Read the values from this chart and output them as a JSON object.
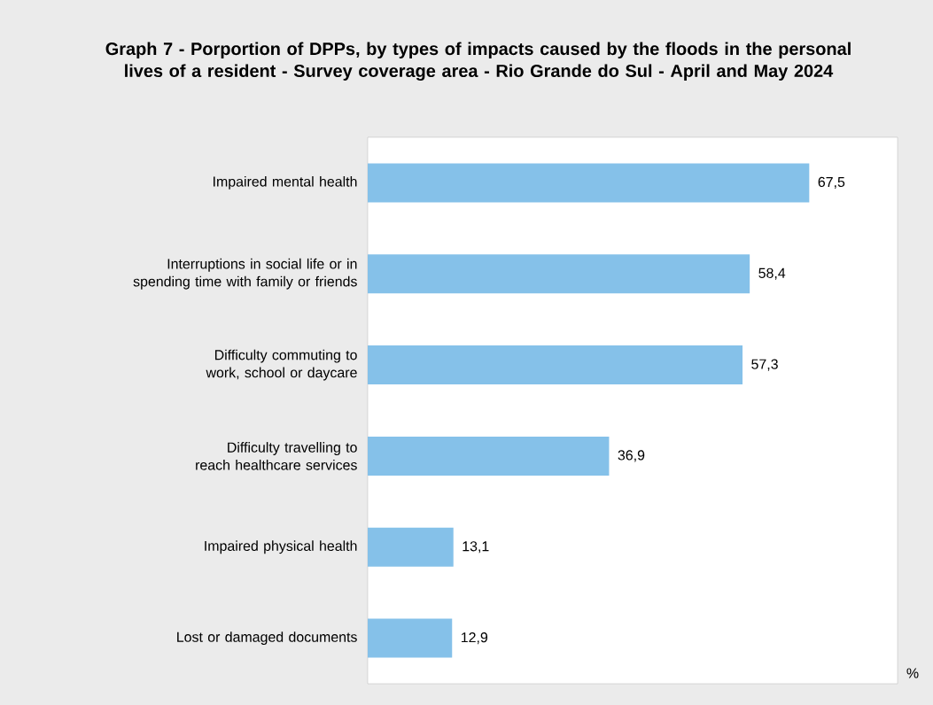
{
  "chart_data": {
    "type": "bar",
    "orientation": "horizontal",
    "title": "Graph 7 - Porportion of DPPs, by types of impacts caused by the floods in the personal lives of a resident - Survey coverage area - Rio Grande do Sul - April and May 2024",
    "annotations": [
      "%"
    ],
    "categories": [
      "Impaired mental health",
      "Interruptions in social life or in spending time with family or friends",
      "Difficulty commuting to work, school or daycare",
      "Difficulty travelling to reach healthcare services",
      "Impaired physical health",
      "Lost or damaged documents"
    ],
    "values": [
      67.5,
      58.4,
      57.3,
      36.9,
      13.1,
      12.9
    ],
    "value_labels": [
      "67,5",
      "58,4",
      "57,3",
      "36,9",
      "13,1",
      "12,9"
    ],
    "color": "#85c1e9"
  }
}
